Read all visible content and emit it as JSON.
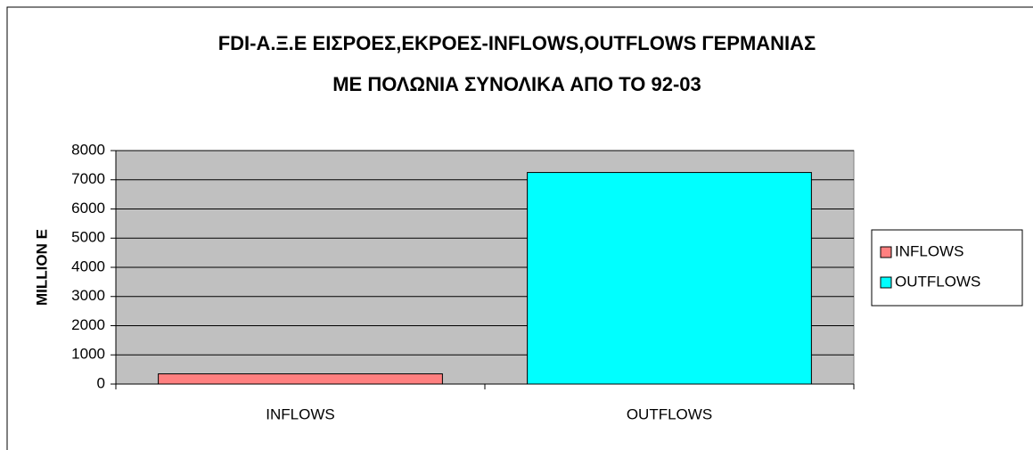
{
  "chart_data": {
    "type": "bar",
    "title": [
      "FDI-Α.Ξ.Ε ΕΙΣΡΟΕΣ,ΕΚΡΟΕΣ-INFLOWS,OUTFLOWS ΓΕΡΜΑΝΙΑΣ",
      "ΜΕ ΠΟΛΩΝΙΑ ΣΥΝΟΛΙΚΑ ΑΠΟ ΤΟ 92-03"
    ],
    "y_label": "MILLION E",
    "categories": [
      "INFLOWS",
      "OUTFLOWS"
    ],
    "values": [
      350,
      7250
    ],
    "colors": [
      "#ff8080",
      "#00ffff"
    ],
    "ylim": [
      0,
      8000
    ],
    "yticks": [
      0,
      1000,
      2000,
      3000,
      4000,
      5000,
      6000,
      7000,
      8000
    ],
    "grid": true,
    "legend": "right"
  }
}
